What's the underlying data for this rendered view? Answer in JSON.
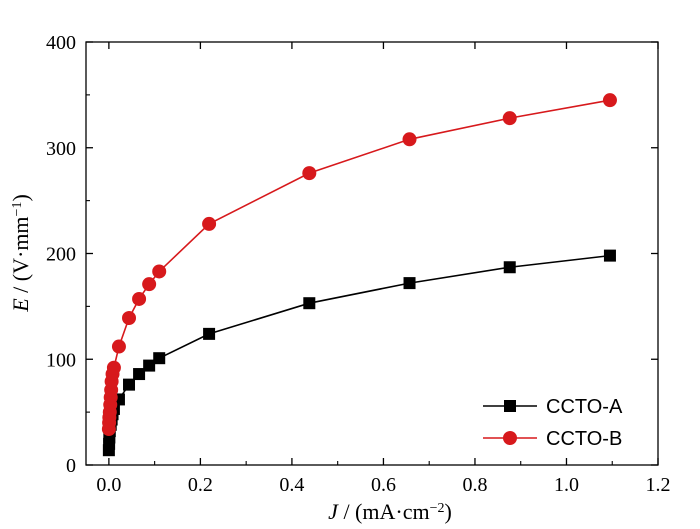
{
  "chart_data": {
    "type": "line",
    "xlabel": "J / (mA·cm−2)",
    "ylabel": "E / (V·mm−1)",
    "xlim": [
      -0.05,
      1.2
    ],
    "ylim": [
      0,
      400
    ],
    "xticks": [
      0.0,
      0.2,
      0.4,
      0.6,
      0.8,
      1.0,
      1.2
    ],
    "yticks": [
      0,
      100,
      200,
      300,
      400
    ],
    "xtick_labels": [
      "0.0",
      "0.2",
      "0.4",
      "0.6",
      "0.8",
      "1.0",
      "1.2"
    ],
    "ytick_labels": [
      "0",
      "100",
      "200",
      "300",
      "400"
    ],
    "grid": false,
    "legend_position": "bottom-right",
    "series": [
      {
        "name": "CCTO-A",
        "color": "#000000",
        "marker": "square",
        "x": [
          0.0,
          0.0005,
          0.001,
          0.002,
          0.004,
          0.006,
          0.008,
          0.011,
          0.022,
          0.044,
          0.066,
          0.088,
          0.11,
          0.219,
          0.438,
          0.657,
          0.876,
          1.095
        ],
        "y": [
          14,
          20,
          26,
          32,
          38,
          43,
          48,
          53,
          62,
          76,
          86,
          94,
          101,
          124,
          153,
          172,
          187,
          198
        ]
      },
      {
        "name": "CCTO-B",
        "color": "#d7191c",
        "marker": "circle",
        "x": [
          0.0,
          0.0005,
          0.001,
          0.002,
          0.003,
          0.004,
          0.005,
          0.006,
          0.008,
          0.011,
          0.022,
          0.044,
          0.066,
          0.088,
          0.11,
          0.219,
          0.438,
          0.657,
          0.876,
          1.095
        ],
        "y": [
          34,
          40,
          45,
          50,
          57,
          64,
          71,
          79,
          86,
          92,
          112,
          139,
          157,
          171,
          183,
          228,
          276,
          308,
          328,
          345
        ]
      }
    ]
  }
}
